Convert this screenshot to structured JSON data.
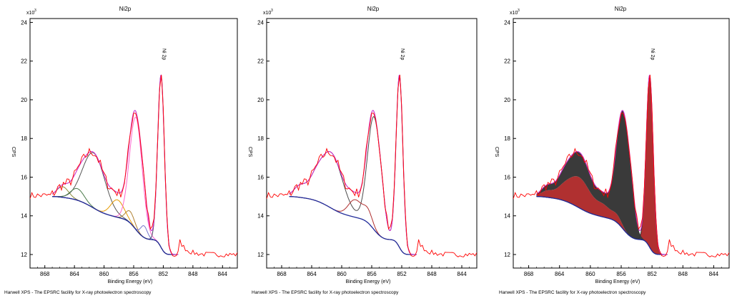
{
  "footer_text": "Harwell XPS - The EPSRC facility for X-ray photoelectron spectroscopy",
  "colors": {
    "envelope": "#cc33cc",
    "raw": "#ff0000",
    "background": "#1f2a99",
    "fill_dark": "#3a3a3a",
    "fill_red": "#b03030",
    "peak_sat1": "#565656",
    "peak_sat2": "#8a8a3a",
    "peak_sat3": "#4a7a4a",
    "peak_shoulder1": "#e69a00",
    "peak_shoulder2": "#b08030",
    "peak_multiplet": "#ff66cc",
    "peak_main": "#444466",
    "peak_extra": "#7777cc",
    "sum_main": "#4a4a4a",
    "sum_satellite": "#b03030"
  },
  "chart_data": [
    {
      "type": "line",
      "title": "Ni2p",
      "xlabel": "Binding Energy (eV)",
      "ylabel": "CPS",
      "y_multiplier_label": "x10",
      "y_multiplier_exp": "3",
      "xlim": [
        870,
        842
      ],
      "ylim": [
        11.3,
        24.2
      ],
      "xticks": [
        "868",
        "864",
        "860",
        "856",
        "852",
        "848",
        "844"
      ],
      "yticks": [
        "12",
        "14",
        "16",
        "18",
        "20",
        "22",
        "24"
      ],
      "annotation": {
        "text": "Ni 2p",
        "x": 852.2
      },
      "series_kind": "components",
      "fit_range": [
        867,
        850
      ]
    },
    {
      "type": "line",
      "title": "Ni2p",
      "xlabel": "Binding Energy (eV)",
      "ylabel": "CPS",
      "y_multiplier_label": "x10",
      "y_multiplier_exp": "3",
      "xlim": [
        870,
        842
      ],
      "ylim": [
        11.3,
        24.2
      ],
      "xticks": [
        "868",
        "864",
        "860",
        "856",
        "852",
        "848",
        "844"
      ],
      "yticks": [
        "12",
        "14",
        "16",
        "18",
        "20",
        "22",
        "24"
      ],
      "annotation": {
        "text": "Ni 2p",
        "x": 852.2
      },
      "series_kind": "grouped",
      "fit_range": [
        867,
        850
      ]
    },
    {
      "type": "area",
      "title": "Ni2p",
      "xlabel": "Binding Energy (eV)",
      "ylabel": "CPS",
      "y_multiplier_label": "x10",
      "y_multiplier_exp": "3",
      "xlim": [
        870,
        842
      ],
      "ylim": [
        11.3,
        24.2
      ],
      "xticks": [
        "868",
        "864",
        "860",
        "856",
        "852",
        "848",
        "844"
      ],
      "yticks": [
        "12",
        "14",
        "16",
        "18",
        "20",
        "22",
        "24"
      ],
      "annotation": {
        "text": "Ni 2p",
        "x": 852.2
      },
      "series_kind": "filled",
      "fit_range": [
        867,
        850
      ]
    }
  ],
  "spectrum": {
    "x_start": 870,
    "x_step": 0.25,
    "baseline_low": 15.0,
    "baseline_high": 12.0,
    "tail_level": 12.0,
    "peaks": [
      {
        "id": "sat1",
        "center": 861.4,
        "height": 2.85,
        "width": 1.5
      },
      {
        "id": "sat2",
        "center": 865.6,
        "height": 0.55,
        "width": 0.8
      },
      {
        "id": "sat3",
        "center": 863.6,
        "height": 0.6,
        "width": 0.9
      },
      {
        "id": "shoulder1",
        "center": 858.2,
        "height": 0.9,
        "width": 0.9
      },
      {
        "id": "shoulder2",
        "center": 856.5,
        "height": 0.6,
        "width": 0.6
      },
      {
        "id": "multiplet",
        "center": 855.7,
        "height": 5.8,
        "width": 0.85
      },
      {
        "id": "extra",
        "center": 854.6,
        "height": 0.6,
        "width": 0.45
      },
      {
        "id": "main",
        "center": 852.3,
        "height": 8.9,
        "width": 0.45
      }
    ],
    "groups": {
      "main": [
        "multiplet",
        "extra",
        "main"
      ],
      "satellite": [
        "sat1",
        "sat2",
        "sat3",
        "shoulder1",
        "shoulder2"
      ]
    }
  }
}
